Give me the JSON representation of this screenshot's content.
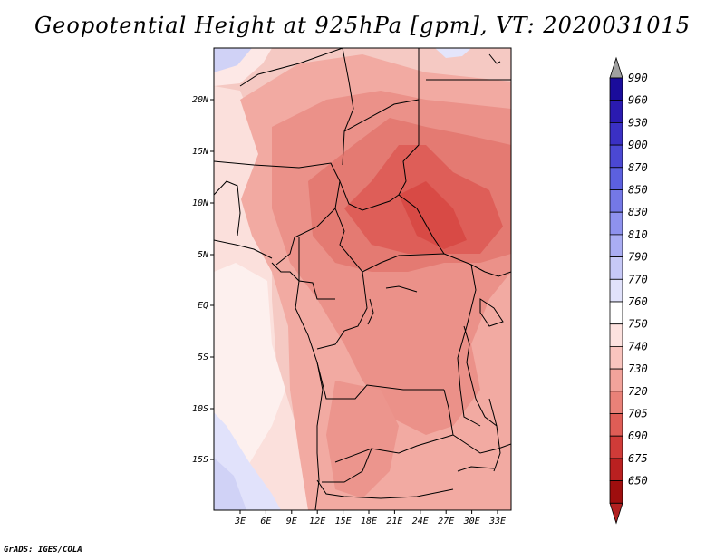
{
  "title": "Geopotential Height at 925hPa [gpm], VT: 2020031015",
  "footer": "GrADS: IGES/COLA",
  "lat_labels": [
    "20N",
    "15N",
    "10N",
    "5N",
    "EQ",
    "5S",
    "10S",
    "15S"
  ],
  "lon_labels": [
    "3E",
    "6E",
    "9E",
    "12E",
    "15E",
    "18E",
    "21E",
    "24E",
    "27E",
    "30E",
    "33E"
  ],
  "colorbar": {
    "levels": [
      "990",
      "960",
      "930",
      "900",
      "870",
      "850",
      "830",
      "810",
      "790",
      "770",
      "760",
      "750",
      "740",
      "730",
      "720",
      "705",
      "690",
      "675",
      "650"
    ],
    "colors": [
      "#1a0c9b",
      "#2a1ab0",
      "#3a30c4",
      "#4b48d3",
      "#5c60df",
      "#7478e6",
      "#8e92ee",
      "#aaadf3",
      "#c7c9f7",
      "#e1e2fb",
      "#ffffff",
      "#fde2df",
      "#f9c4be",
      "#f2a39b",
      "#e98178",
      "#df5d56",
      "#d03b38",
      "#ba2020",
      "#9e0e0e"
    ],
    "top_arrow_color": "#a0a0a0",
    "bottom_arrow_color": "#b22020"
  }
}
